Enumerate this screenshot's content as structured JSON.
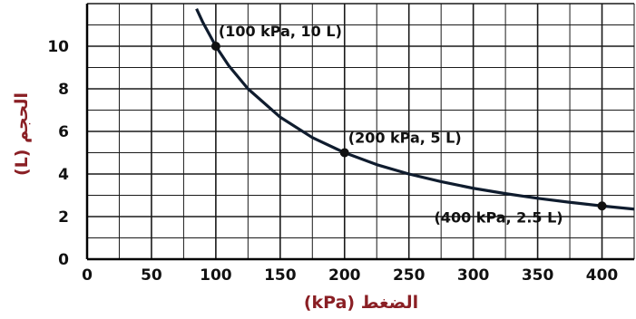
{
  "chart_data": {
    "type": "line",
    "xlabel": "الضغط (kPa)",
    "ylabel": "الحجم (L)",
    "xlim": [
      0,
      425
    ],
    "ylim": [
      0,
      12
    ],
    "x_ticks": [
      0,
      50,
      100,
      150,
      200,
      250,
      300,
      350,
      400
    ],
    "y_ticks": [
      0,
      2,
      4,
      6,
      8,
      10
    ],
    "grid": true,
    "series": [
      {
        "x": [
          85,
          90,
          100,
          110,
          125,
          150,
          175,
          200,
          225,
          250,
          275,
          300,
          325,
          350,
          375,
          400,
          425
        ],
        "y": [
          11.76,
          11.11,
          10,
          9.09,
          8,
          6.67,
          5.71,
          5,
          4.44,
          4,
          3.64,
          3.33,
          3.08,
          2.86,
          2.67,
          2.5,
          2.35
        ]
      }
    ],
    "points": [
      {
        "x": 100,
        "y": 10
      },
      {
        "x": 200,
        "y": 5
      },
      {
        "x": 400,
        "y": 2.5
      }
    ],
    "annotations": [
      "(100 kPa, 10 L)",
      "(200 kPa, 5 L)",
      "(400 kPa, 2.5 L)"
    ],
    "colors": {
      "grid": "#1a1a1a",
      "curve": "#0f1c2e",
      "point": "#111111",
      "axis_title": "#8a1f24",
      "plot_bg": "#ffffff"
    }
  }
}
